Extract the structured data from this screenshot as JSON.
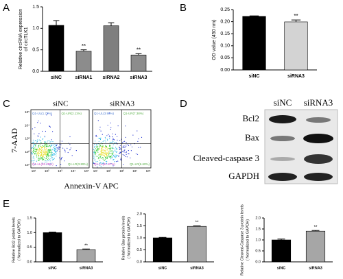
{
  "panel_labels": [
    "A",
    "B",
    "C",
    "D",
    "E"
  ],
  "chart_data": [
    {
      "type": "bar",
      "y_label": [
        "Relative circRNA expression",
        "of circTLK1"
      ],
      "categories": [
        "siNC",
        "siRNA1",
        "siRNA2",
        "siRNA3"
      ],
      "values": [
        1.07,
        0.47,
        1.06,
        0.38
      ],
      "errors": [
        0.11,
        0.03,
        0.07,
        0.03
      ],
      "colors": [
        "#000000",
        "#8c8c8c",
        "#7f7f7f",
        "#8c8c8c"
      ],
      "significance": [
        null,
        "**",
        null,
        "**"
      ],
      "ylim": [
        0,
        1.5
      ],
      "yticks": [
        {
          "value": 0,
          "label": "0.0"
        },
        0.5,
        {
          "value": 1,
          "label": "1.0"
        },
        1.5
      ]
    },
    {
      "type": "bar",
      "y_label": [
        "OD value (450 nm)"
      ],
      "categories": [
        "siNC",
        "siRNA3"
      ],
      "values": [
        0.222,
        0.199
      ],
      "errors": [
        0.002,
        0.008
      ],
      "colors": [
        "#000000",
        "#d3d3d3"
      ],
      "significance": [
        null,
        "**"
      ],
      "ylim": [
        0,
        0.25
      ],
      "yticks": [
        {
          "value": 0,
          "label": "0.00"
        },
        {
          "value": 0.05,
          "label": "0.05"
        },
        {
          "value": 0.1,
          "label": "0.10"
        },
        {
          "value": 0.15,
          "label": "0.15"
        },
        {
          "value": 0.2,
          "label": "0.20"
        },
        {
          "value": 0.25,
          "label": "0.25"
        }
      ]
    },
    {
      "type": "bar",
      "y_label": [
        "Relative Bcl2 protein levels",
        "( Normalized to GAPDH)"
      ],
      "categories": [
        "siNC",
        "siRNA3"
      ],
      "values": [
        1.0,
        0.42
      ],
      "errors": [
        0.02,
        0.02
      ],
      "colors": [
        "#000000",
        "#a6a6a6"
      ],
      "significance": [
        null,
        "**"
      ],
      "ylim": [
        0,
        1.5
      ],
      "yticks": [
        {
          "value": 0,
          "label": "0.0"
        },
        0.5,
        {
          "value": 1,
          "label": "1.0"
        },
        1.5
      ]
    },
    {
      "type": "bar",
      "y_label": [
        "Relative Bax protein levels",
        "( Normalized to GAPDH)"
      ],
      "categories": [
        "siNC",
        "siRNA3"
      ],
      "values": [
        1.0,
        1.48
      ],
      "errors": [
        0.02,
        0.02
      ],
      "colors": [
        "#000000",
        "#a6a6a6"
      ],
      "significance": [
        null,
        "**"
      ],
      "ylim": [
        0,
        2
      ],
      "yticks": [
        {
          "value": 0,
          "label": "0.0"
        },
        0.5,
        {
          "value": 1,
          "label": "1.0"
        },
        1.5,
        {
          "value": 2,
          "label": "2.0"
        }
      ]
    },
    {
      "type": "bar",
      "y_label": [
        "Relative Cleaved-Caspase 3 protein levels",
        "( Normalized to GAPDH)"
      ],
      "categories": [
        "siNC",
        "siRNA3"
      ],
      "values": [
        1.0,
        1.4
      ],
      "errors": [
        0.04,
        0.03
      ],
      "colors": [
        "#000000",
        "#a6a6a6"
      ],
      "significance": [
        null,
        "**"
      ],
      "ylim": [
        0,
        2
      ],
      "yticks": [
        {
          "value": 0,
          "label": "0.0"
        },
        0.5,
        {
          "value": 1,
          "label": "1.0"
        },
        1.5,
        {
          "value": 2,
          "label": "2.0"
        }
      ]
    }
  ],
  "flow": {
    "samples": [
      "siNC",
      "siRNA3"
    ],
    "y_label": "7-AAD",
    "x_label": "Annexin-V APC",
    "tick_labels": [
      "10¹",
      "10²",
      "10³",
      "10⁴",
      "10⁵"
    ],
    "quadrants": [
      [
        "Q1-UL(1.72%)",
        "Q1-UR(2.11%)",
        "Q1-LL(92.28%)",
        "Q1-LR(3.89%)"
      ],
      [
        "Q1-UL(3.90%)",
        "Q1-UR(7.38%)",
        "Q1-LL(81.87%)",
        "Q1-LR(6.60%)"
      ]
    ]
  },
  "blot": {
    "lanes": [
      "siNC",
      "siRNA3"
    ],
    "proteins": [
      "Bcl2",
      "Bax",
      "Cleaved-caspase 3",
      "GAPDH"
    ]
  }
}
